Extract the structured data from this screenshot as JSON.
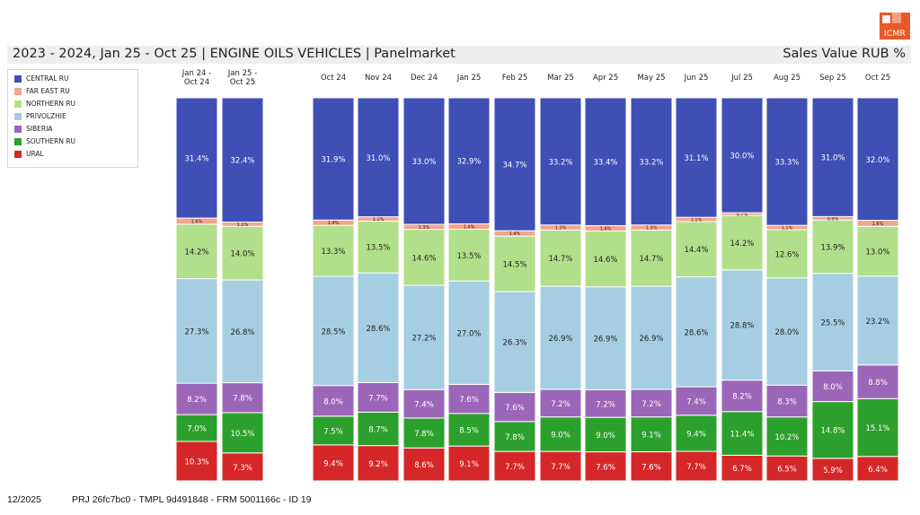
{
  "header": {
    "title": "2023 - 2024, Jan 25 - Oct 25 | ENGINE OILS VEHICLES | Panelmarket",
    "subtitle": "Sales Value RUB %",
    "logo_text": "ICMR"
  },
  "footer": {
    "date": "12/2025",
    "project": "PRJ 26fc7bc0 - TMPL 9d491848 - FRM 5001166c - ID 19"
  },
  "legend": {
    "items": [
      {
        "label": "CENTRAL RU",
        "color": "#3f4fb5"
      },
      {
        "label": "FAR EAST RU",
        "color": "#f4a48c"
      },
      {
        "label": "NORTHERN RU",
        "color": "#b2df8a"
      },
      {
        "label": "PRIVOLZHIE",
        "color": "#a6cee3"
      },
      {
        "label": "SIBERIA",
        "color": "#9b66b8"
      },
      {
        "label": "SOUTHERN RU",
        "color": "#2ca02c"
      },
      {
        "label": "URAL",
        "color": "#d62728"
      }
    ]
  },
  "chart_data": {
    "type": "bar",
    "stacked": true,
    "percent_stacked": true,
    "title": "2023 - 2024, Jan 25 - Oct 25 | ENGINE OILS VEHICLES | Panelmarket",
    "ylabel": "Sales Value RUB %",
    "categories": [
      "Jan 24 - Oct 24",
      "Jan 25 - Oct 25",
      "Oct 24",
      "Nov 24",
      "Dec 24",
      "Jan 25",
      "Feb 25",
      "Mar 25",
      "Apr 25",
      "May 25",
      "Jun 25",
      "Jul 25",
      "Aug 25",
      "Sep 25",
      "Oct 25"
    ],
    "category_groups": [
      [
        0,
        1
      ],
      [
        2,
        3,
        4,
        5,
        6,
        7,
        8,
        9,
        10,
        11,
        12,
        13,
        14
      ]
    ],
    "series": [
      {
        "name": "URAL",
        "color": "#d62728",
        "values": [
          10.3,
          7.3,
          9.4,
          9.2,
          8.6,
          9.1,
          7.7,
          7.7,
          7.6,
          7.6,
          7.7,
          6.7,
          6.5,
          5.9,
          6.4
        ]
      },
      {
        "name": "SOUTHERN RU",
        "color": "#2ca02c",
        "values": [
          7.0,
          10.5,
          7.5,
          8.7,
          7.8,
          8.5,
          7.8,
          9.0,
          9.0,
          9.1,
          9.4,
          11.4,
          10.2,
          14.8,
          15.1
        ]
      },
      {
        "name": "SIBERIA",
        "color": "#9b66b8",
        "values": [
          8.2,
          7.8,
          8.0,
          7.7,
          7.4,
          7.6,
          7.6,
          7.2,
          7.2,
          7.2,
          7.4,
          8.2,
          8.3,
          8.0,
          8.8
        ]
      },
      {
        "name": "PRIVOLZHIE",
        "color": "#a6cee3",
        "values": [
          27.3,
          26.8,
          28.5,
          28.6,
          27.2,
          27.0,
          26.3,
          26.9,
          26.9,
          26.9,
          28.6,
          28.8,
          28.0,
          25.5,
          23.2
        ]
      },
      {
        "name": "NORTHERN RU",
        "color": "#b2df8a",
        "values": [
          14.2,
          14.0,
          13.3,
          13.5,
          14.6,
          13.5,
          14.5,
          14.7,
          14.6,
          14.7,
          14.4,
          14.2,
          12.6,
          13.9,
          13.0
        ]
      },
      {
        "name": "FAR EAST RU",
        "color": "#f4a48c",
        "values": [
          1.6,
          1.1,
          1.4,
          1.1,
          1.3,
          1.4,
          1.4,
          1.3,
          1.4,
          1.3,
          1.1,
          0.7,
          1.1,
          0.9,
          1.6
        ]
      },
      {
        "name": "CENTRAL RU",
        "color": "#3f4fb5",
        "values": [
          31.4,
          32.4,
          31.9,
          31.0,
          33.0,
          32.9,
          34.7,
          33.2,
          33.4,
          33.2,
          31.1,
          30.0,
          33.3,
          31.0,
          32.0
        ]
      }
    ],
    "data_labels": {
      "URAL": [
        "10.3%",
        "7.3%",
        "9.4%",
        "9.2%",
        "8.6%",
        "9.1%",
        "7.7%",
        "7.7%",
        "7.6%",
        "7.6%",
        "7.7%",
        "6.7%",
        "6.5%",
        "5.9%",
        "6.4%"
      ],
      "SOUTHERN RU": [
        "7.0%",
        "10.5%",
        "7.5%",
        "8.7%",
        "7.8%",
        "8.5%",
        "7.8%",
        "9.0%",
        "9.0%",
        "9.1%",
        "9.4%",
        "11.4%",
        "10.2%",
        "14.8%",
        "15.1%"
      ],
      "SIBERIA": [
        "8.2%",
        "7.8%",
        "8.0%",
        "7.7%",
        "7.4%",
        "7.6%",
        "7.6%",
        "7.2%",
        "7.2%",
        "7.2%",
        "7.4%",
        "8.2%",
        "8.3%",
        "8.0%",
        "8.8%"
      ],
      "PRIVOLZHIE": [
        "27.3%",
        "26.8%",
        "28.5%",
        "28.6%",
        "27.2%",
        "27.0%",
        "26.3%",
        "26.9%",
        "26.9%",
        "26.9%",
        "28.6%",
        "28.8%",
        "28.0%",
        "25.5%",
        "23.2%"
      ],
      "NORTHERN RU": [
        "14.2%",
        "14.0%",
        "13.3%",
        "13.5%",
        "14.6%",
        "13.5%",
        "14.5%",
        "14.7%",
        "14.6%",
        "14.7%",
        "14.4%",
        "14.2%",
        "12.6%",
        "13.9%",
        "13.0%"
      ],
      "FAR EAST RU": [
        "1.6%",
        "1.1%",
        "1.4%",
        "1.1%",
        "1.3%",
        "1.4%",
        "1.4%",
        "1.3%",
        "1.4%",
        "1.3%",
        "1.1%",
        "0.7%",
        "1.1%",
        "0.9%",
        "1.6%"
      ],
      "CENTRAL RU": [
        "31.4%",
        "32.4%",
        "31.9%",
        "31.0%",
        "33.0%",
        "32.9%",
        "34.7%",
        "33.2%",
        "33.4%",
        "33.2%",
        "31.1%",
        "30.0%",
        "33.3%",
        "31.0%",
        "32.0%"
      ]
    },
    "ylim": [
      0,
      100
    ],
    "legend_position": "top-left",
    "grid": false
  }
}
